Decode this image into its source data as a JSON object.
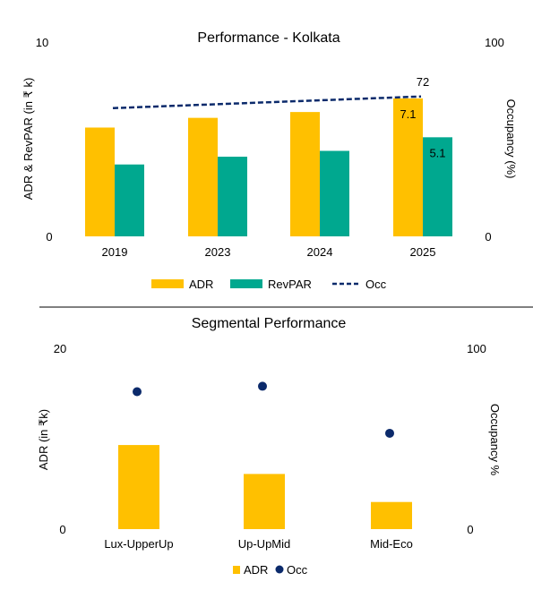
{
  "colors": {
    "adr": "#FFC000",
    "revpar": "#00A88F",
    "occ": "#0B2A6B",
    "text": "#000000",
    "divider": "#000000"
  },
  "chart_data": [
    {
      "type": "bar",
      "title": "Performance - Kolkata",
      "categories": [
        "2019",
        "2023",
        "2024",
        "2025"
      ],
      "series": [
        {
          "name": "ADR",
          "values": [
            5.6,
            6.1,
            6.4,
            7.1
          ],
          "axis": "left",
          "color": "#FFC000"
        },
        {
          "name": "RevPAR",
          "values": [
            3.7,
            4.1,
            4.4,
            5.1
          ],
          "axis": "left",
          "color": "#00A88F"
        },
        {
          "name": "Occ",
          "type": "line",
          "style": "dashed",
          "values": [
            66,
            68,
            70,
            72
          ],
          "axis": "right",
          "color": "#0B2A6B"
        }
      ],
      "data_labels": {
        "ADR_2025": "7.1",
        "RevPAR_2025": "5.1",
        "Occ_2025": "72"
      },
      "ylabel": "ADR & RevPAR (in ₹ k)",
      "y2label": "Occupancy (%)",
      "ylim": [
        0,
        10
      ],
      "y2lim": [
        0,
        100
      ],
      "yticks": [
        "0",
        "10"
      ],
      "y2ticks": [
        "0",
        "100"
      ],
      "legend": [
        "ADR",
        "RevPAR",
        "Occ"
      ],
      "legend_position": "bottom",
      "grid": false
    },
    {
      "type": "bar",
      "title": "Segmental Performance",
      "categories": [
        "Lux-UpperUp",
        "Up-UpMid",
        "Mid-Eco"
      ],
      "series": [
        {
          "name": "ADR",
          "values": [
            9.3,
            6.1,
            3.0
          ],
          "axis": "left",
          "color": "#FFC000"
        },
        {
          "name": "Occ",
          "type": "scatter",
          "values": [
            76,
            79,
            53
          ],
          "axis": "right",
          "color": "#0B2A6B"
        }
      ],
      "ylabel": "ADR (in ₹k)",
      "y2label": "Occupancy %",
      "ylim": [
        0,
        20
      ],
      "y2lim": [
        0,
        100
      ],
      "yticks": [
        "0",
        "20"
      ],
      "y2ticks": [
        "0",
        "100"
      ],
      "legend": [
        "ADR",
        "Occ"
      ],
      "legend_position": "bottom",
      "grid": false
    }
  ]
}
